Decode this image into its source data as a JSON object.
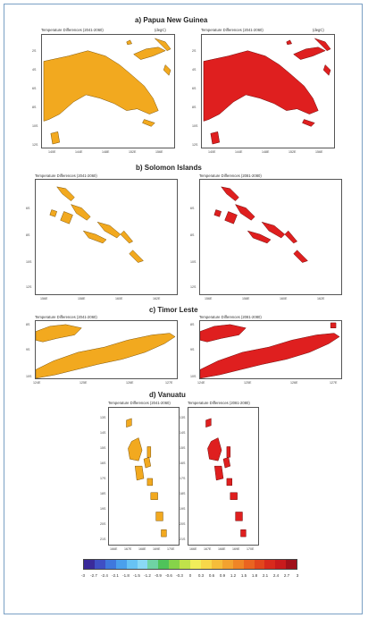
{
  "colors": {
    "orange_fill": "#f2a91f",
    "red_fill": "#df1f1f",
    "frame": "#7aa0c4"
  },
  "sections": {
    "a": {
      "title": "a)   Papua New Guinea",
      "left_title": "Temperature Differences (2041-2060)",
      "right_title": "Temperature Differences (2041-2060)",
      "unit": "(degC)",
      "y_ticks": [
        "2S",
        "4S",
        "6S",
        "8S",
        "10S",
        "12S"
      ],
      "x_ticks": [
        "140E",
        "144E",
        "148E",
        "152E",
        "156E"
      ]
    },
    "b": {
      "title": "b) Solomon Islands",
      "left_title": "Temperature Differences (2041-2060)",
      "right_title": "Temperature Differences (2081-2080)",
      "y_ticks": [
        "6S",
        "8S",
        "10S",
        "12S"
      ],
      "x_ticks": [
        "156E",
        "158E",
        "160E",
        "162E"
      ]
    },
    "c": {
      "title": "c)   Timor Leste",
      "left_title": "Temperature Differences (2041-2060)",
      "right_title": "Temperature Differences (2081-2080)",
      "y_ticks": [
        "8S",
        "9S",
        "10S"
      ],
      "x_ticks": [
        "124E",
        "125E",
        "126E",
        "127E"
      ]
    },
    "d": {
      "title": "d)   Vanuatu",
      "left_title": "Temperature Differences (2041-2060)",
      "right_title": "Temperature Differences (2081-2080)",
      "y_ticks": [
        "13S",
        "14S",
        "15S",
        "16S",
        "17S",
        "18S",
        "19S",
        "20S",
        "21S"
      ],
      "x_ticks": [
        "166E",
        "167E",
        "168E",
        "169E",
        "170E"
      ]
    }
  },
  "colorbar": {
    "labels": [
      "-3",
      "-2.7",
      "-2.4",
      "-2.1",
      "-1.8",
      "-1.5",
      "-1.2",
      "-0.9",
      "-0.6",
      "-0.3",
      "0",
      "0.3",
      "0.6",
      "0.9",
      "1.2",
      "1.5",
      "1.8",
      "2.1",
      "2.4",
      "2.7",
      "3"
    ],
    "colors": [
      "#3a2a9a",
      "#3f4fc4",
      "#3f78dd",
      "#4aa0ec",
      "#67c3f4",
      "#8ad9f5",
      "#6fd3a4",
      "#4fc35a",
      "#86d34a",
      "#c0e24a",
      "#f1ee5a",
      "#f7d84a",
      "#f5bd3a",
      "#f2a22f",
      "#ef8526",
      "#ea6420",
      "#e2461c",
      "#d82a1c",
      "#c81a1c",
      "#a0101a"
    ]
  }
}
